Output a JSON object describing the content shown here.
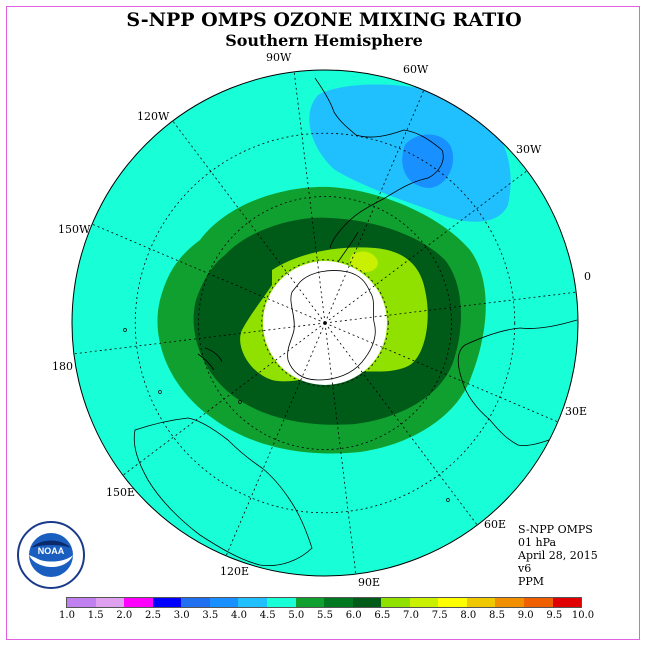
{
  "title": "S-NPP OMPS OZONE MIXING RATIO",
  "subtitle": "Southern Hemisphere",
  "longitude_labels": [
    "90W",
    "60W",
    "30W",
    "0",
    "30E",
    "60E",
    "90E",
    "120E",
    "150E",
    "180",
    "150W",
    "120W"
  ],
  "info": {
    "instrument": "S-NPP OMPS",
    "level": "01 hPa",
    "date": "April 28, 2015",
    "version": "v6",
    "units": "PPM"
  },
  "logo": {
    "text": "NOAA",
    "icon": "noaa-logo-icon"
  },
  "colorbar": {
    "ticks": [
      "1.0",
      "1.5",
      "2.0",
      "2.5",
      "3.0",
      "3.5",
      "4.0",
      "4.5",
      "5.0",
      "5.5",
      "6.0",
      "6.5",
      "7.0",
      "7.5",
      "8.0",
      "8.5",
      "9.0",
      "9.5",
      "10.0"
    ],
    "colors": [
      "#c080f0",
      "#e0a0f0",
      "#ff00ff",
      "#0000ff",
      "#2070f0",
      "#1890ff",
      "#20c0ff",
      "#18ffd8",
      "#10a030",
      "#007820",
      "#005a18",
      "#90e000",
      "#c8f000",
      "#ffff00",
      "#f0c800",
      "#f09000",
      "#f06000",
      "#e00000",
      "#8b5a3a"
    ]
  },
  "map_colors": {
    "ocean_fill": "#18ffd8",
    "ring_mid": "#10a030",
    "ring_dark": "#005a18",
    "inner_light": "#90e000",
    "blob_light": "#20c0ff",
    "blob_dark": "#1890ff",
    "polar_cap": "#ffffff"
  }
}
